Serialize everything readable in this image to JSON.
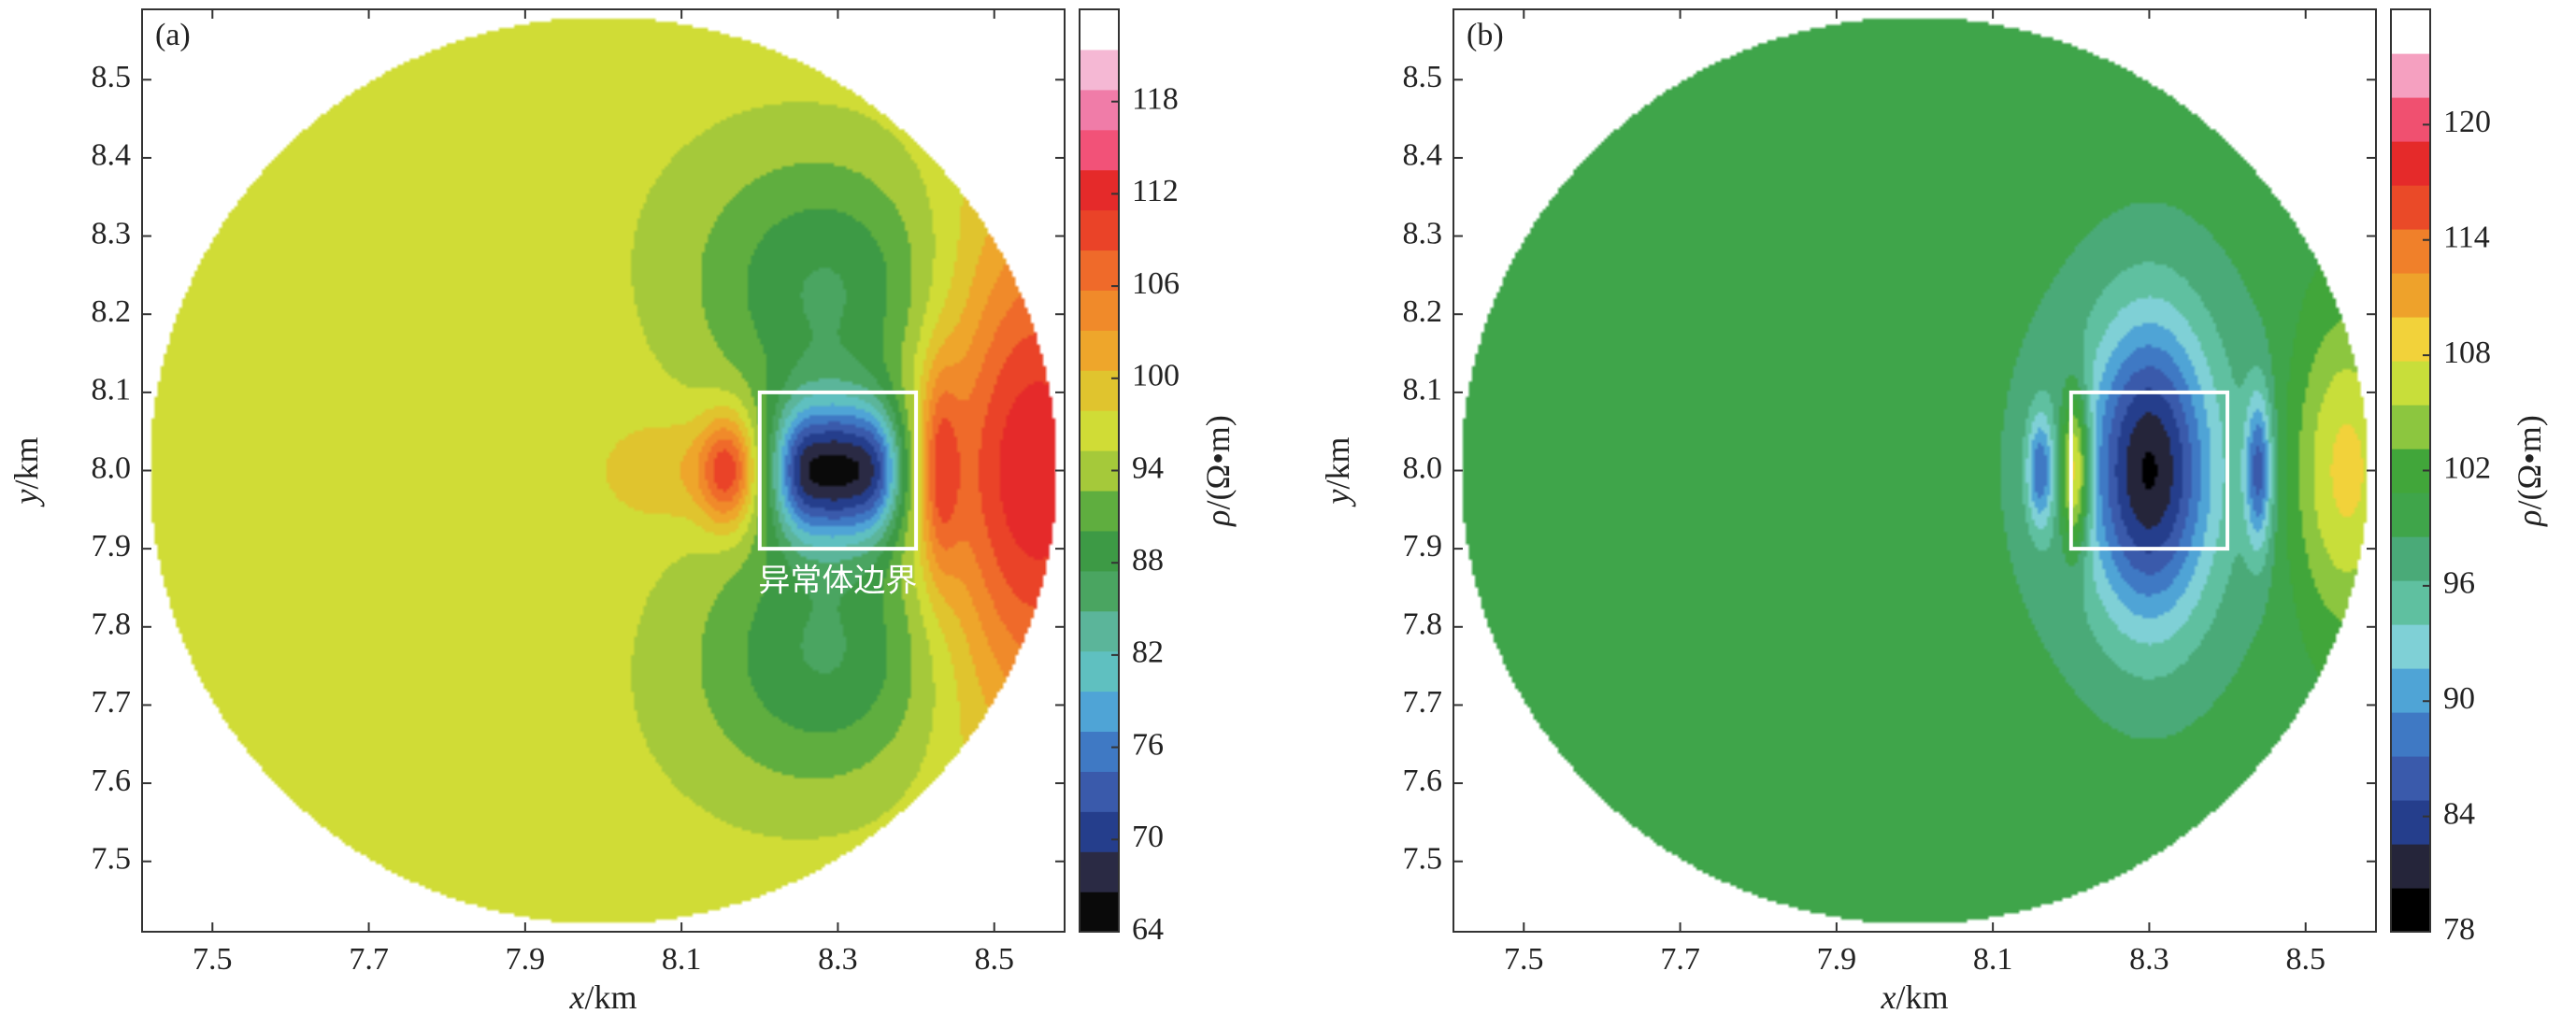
{
  "chart_data": [
    {
      "panel_label": "(a)",
      "type": "heatmap",
      "xlabel_var": "x",
      "xlabel_unit": "/km",
      "ylabel_var": "y",
      "ylabel_unit": "/km",
      "x_ticks": [
        "7.5",
        "7.7",
        "7.9",
        "8.1",
        "8.3",
        "8.5"
      ],
      "y_ticks": [
        "8.5",
        "8.4",
        "8.3",
        "8.2",
        "8.1",
        "8.0",
        "7.9",
        "7.8",
        "7.7",
        "7.6",
        "7.5"
      ],
      "xlim": [
        7.41,
        8.59
      ],
      "ylim": [
        7.41,
        8.59
      ],
      "domain_shape": "circle",
      "domain_center": [
        8.0,
        8.0
      ],
      "domain_radius": 0.58,
      "anomaly_box": {
        "x": [
          8.2,
          8.4
        ],
        "y": [
          7.9,
          8.1
        ],
        "label": "异常体边界"
      },
      "background_value": 97.5,
      "colorbar": {
        "label_var": "ρ",
        "label_unit": "/(Ω•m)",
        "min": 64,
        "max": 124,
        "tick_labels": [
          "118",
          "112",
          "106",
          "100",
          "94",
          "88",
          "82",
          "76",
          "70",
          "64"
        ],
        "colors": [
          "#0a0a0a",
          "#2a2a44",
          "#253e8c",
          "#3a5aab",
          "#3f79c4",
          "#4fa4d6",
          "#5fc0c0",
          "#5bb59a",
          "#4aa561",
          "#3d9a45",
          "#5fae3f",
          "#a5c93a",
          "#d0dc36",
          "#e0c42e",
          "#eea62b",
          "#f08a2a",
          "#ef6a2a",
          "#ea4328",
          "#e52a2a",
          "#f25278",
          "#f07ca8",
          "#f5b8d4",
          "#ffffff"
        ]
      }
    },
    {
      "panel_label": "(b)",
      "type": "heatmap",
      "xlabel_var": "x",
      "xlabel_unit": "/km",
      "ylabel_var": "y",
      "ylabel_unit": "/km",
      "x_ticks": [
        "7.5",
        "7.7",
        "7.9",
        "8.1",
        "8.3",
        "8.5"
      ],
      "y_ticks": [
        "8.5",
        "8.4",
        "8.3",
        "8.2",
        "8.1",
        "8.0",
        "7.9",
        "7.8",
        "7.7",
        "7.6",
        "7.5"
      ],
      "xlim": [
        7.41,
        8.59
      ],
      "ylim": [
        7.41,
        8.59
      ],
      "domain_shape": "circle",
      "domain_center": [
        8.0,
        8.0
      ],
      "domain_radius": 0.58,
      "anomaly_box": {
        "x": [
          8.2,
          8.4
        ],
        "y": [
          7.9,
          8.1
        ]
      },
      "background_value": 100,
      "colorbar": {
        "label_var": "ρ",
        "label_unit": "/(Ω•m)",
        "min": 78,
        "max": 126,
        "tick_labels": [
          "120",
          "114",
          "108",
          "102",
          "96",
          "90",
          "84",
          "78"
        ],
        "colors": [
          "#000000",
          "#25253a",
          "#253e8c",
          "#3a5aab",
          "#3f79c4",
          "#4fa4d6",
          "#7fd0d6",
          "#5fc0a0",
          "#4aaa78",
          "#3fa54a",
          "#41a63a",
          "#8cc63f",
          "#c8de3a",
          "#f2d23a",
          "#eea22b",
          "#f0802a",
          "#ea4a28",
          "#e52a2a",
          "#f05070",
          "#f5a0c0",
          "#ffffff"
        ]
      }
    }
  ]
}
